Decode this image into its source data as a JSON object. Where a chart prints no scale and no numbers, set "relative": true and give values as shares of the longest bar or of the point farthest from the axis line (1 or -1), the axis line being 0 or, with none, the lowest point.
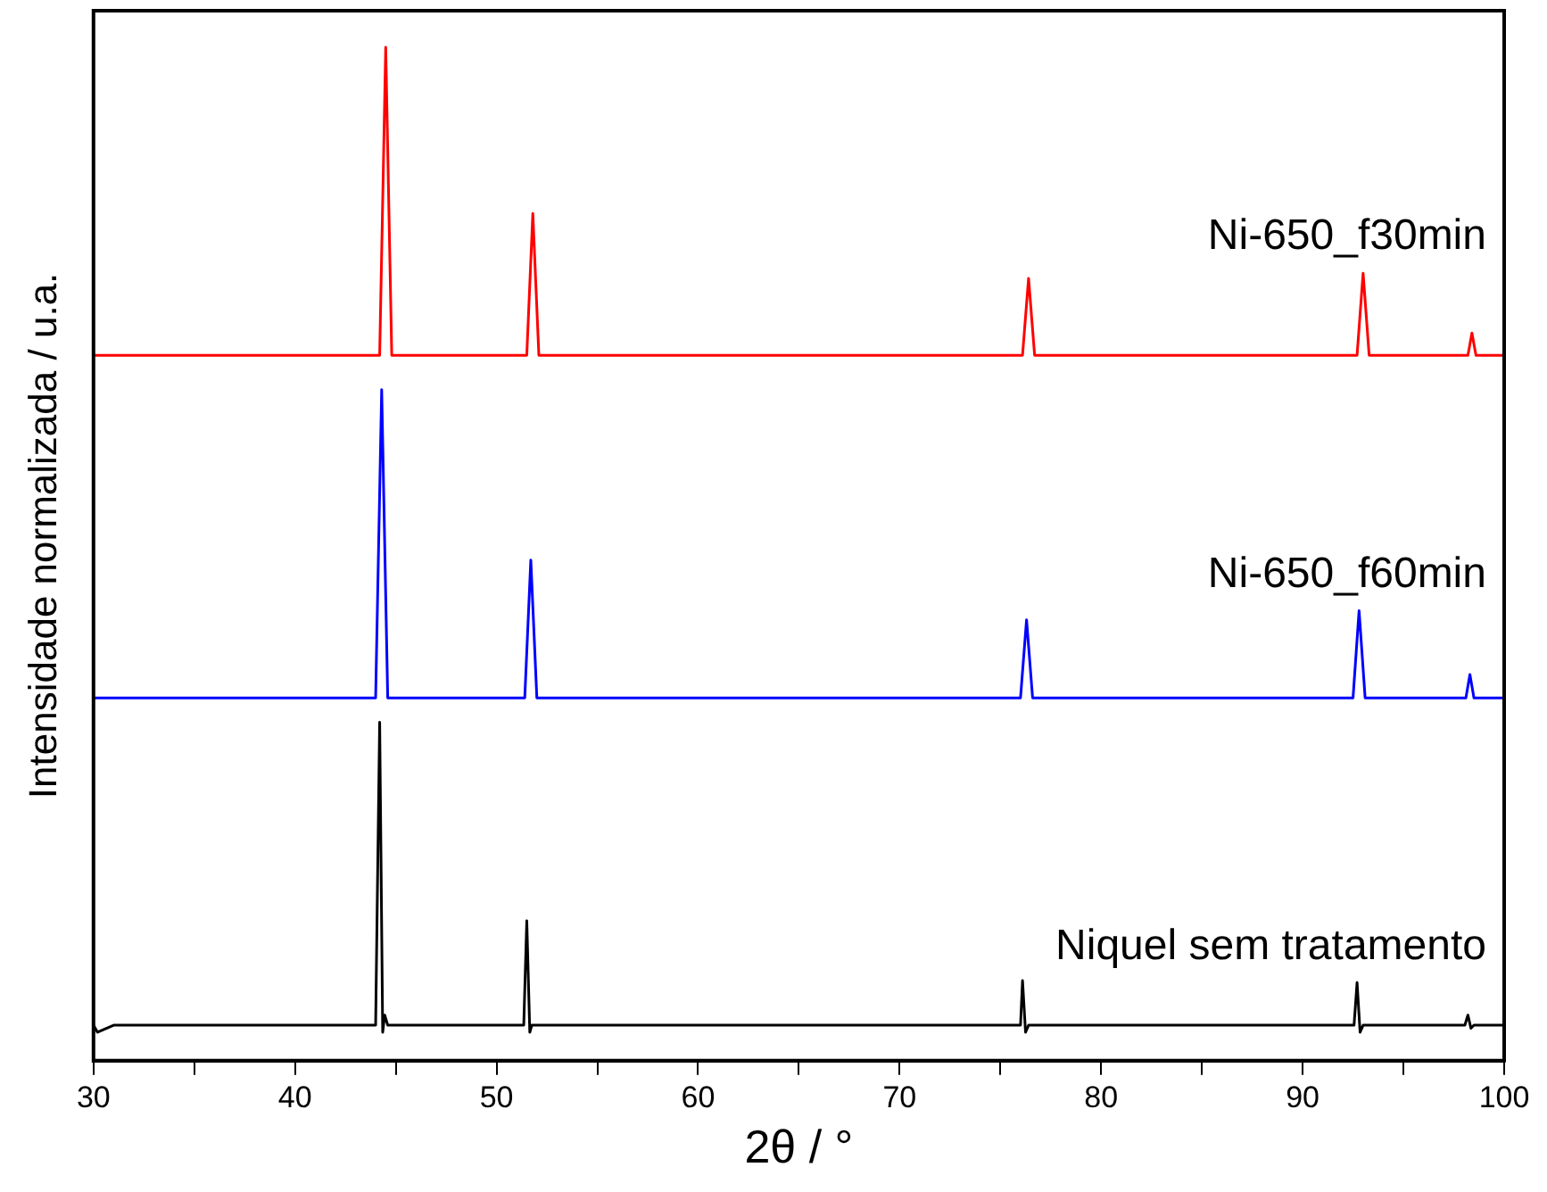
{
  "chart_data": {
    "type": "line",
    "xlabel": "2θ / °",
    "ylabel": "Intensidade normalizada / u.a.",
    "relative": true,
    "legend": false,
    "grid": false,
    "marker": "none",
    "line_style": "solid",
    "xlim": [
      30,
      100
    ],
    "xticks": [
      30,
      {
        "value": 35,
        "label": null
      },
      40,
      {
        "value": 45,
        "label": null
      },
      50,
      {
        "value": 55,
        "label": null
      },
      60,
      {
        "value": 65,
        "label": null
      },
      70,
      {
        "value": 75,
        "label": null
      },
      80,
      {
        "value": 85,
        "label": null
      },
      90,
      {
        "value": 95,
        "label": null
      },
      100
    ],
    "series": [
      {
        "name": "Ni-650_f30min",
        "color": "#ff0000",
        "x": [
          30,
          44.2,
          44.5,
          44.8,
          51.5,
          51.8,
          52.1,
          76.1,
          76.4,
          76.7,
          92.7,
          93.0,
          93.3,
          98.2,
          98.4,
          98.6,
          100
        ],
        "values": [
          0.696,
          0.696,
          1,
          0.696,
          0.696,
          0.836,
          0.696,
          0.696,
          0.772,
          0.696,
          0.696,
          0.777,
          0.696,
          0.696,
          0.718,
          0.696,
          0.696
        ]
      },
      {
        "name": "Ni-650_f60min",
        "color": "#0000ff",
        "x": [
          30,
          44.0,
          44.3,
          44.6,
          51.4,
          51.7,
          52.0,
          76.0,
          76.3,
          76.6,
          92.5,
          92.8,
          93.1,
          98.1,
          98.3,
          98.5,
          100
        ],
        "values": [
          0.358,
          0.358,
          0.662,
          0.358,
          0.358,
          0.494,
          0.358,
          0.358,
          0.435,
          0.358,
          0.358,
          0.444,
          0.358,
          0.358,
          0.381,
          0.358,
          0.358
        ]
      },
      {
        "name": "Niquel sem tratamento",
        "color": "#000000",
        "x": [
          30,
          30.2,
          31,
          44.0,
          44.2,
          44.35,
          44.45,
          44.6,
          51.35,
          51.5,
          51.65,
          51.75,
          76.0,
          76.1,
          76.25,
          76.4,
          92.55,
          92.7,
          92.85,
          93.0,
          98.05,
          98.2,
          98.35,
          98.5,
          100
        ],
        "values": [
          0.035,
          0.028,
          0.035,
          0.035,
          0.334,
          0.028,
          0.045,
          0.035,
          0.035,
          0.138,
          0.028,
          0.035,
          0.035,
          0.079,
          0.028,
          0.035,
          0.035,
          0.077,
          0.028,
          0.035,
          0.035,
          0.045,
          0.032,
          0.035,
          0.035
        ]
      }
    ]
  }
}
